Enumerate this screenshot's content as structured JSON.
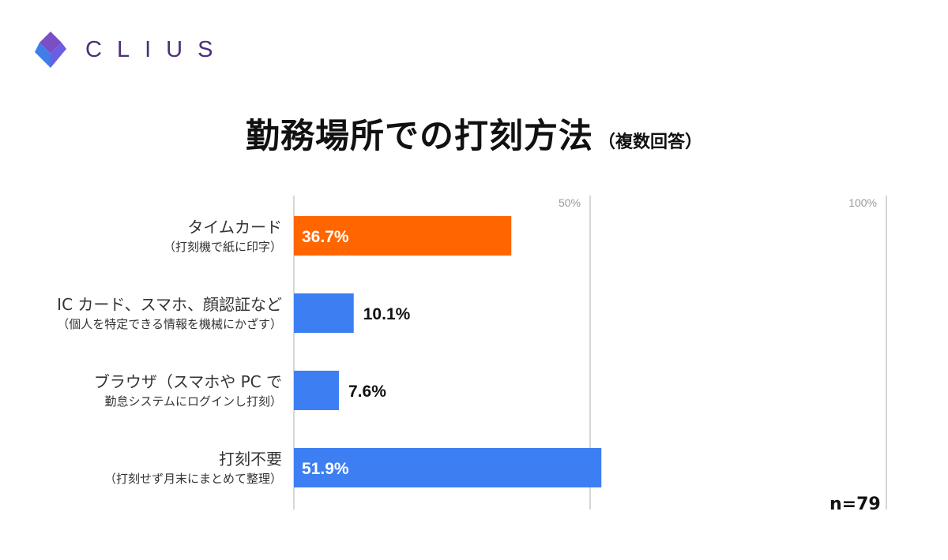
{
  "brand": {
    "name": "CLIUS",
    "logo_icon": "clius-logo-icon",
    "colors": [
      "#7a4fc4",
      "#3f7de9"
    ]
  },
  "title": "勤務場所での打刻方法",
  "subtitle": "（複数回答）",
  "sample": "n=79",
  "chart_data": {
    "type": "bar",
    "orientation": "horizontal",
    "title": "勤務場所での打刻方法",
    "subtitle": "（複数回答）",
    "categories": [
      {
        "main": "タイムカード",
        "sub": "（打刻機で紙に印字）"
      },
      {
        "main": "IC カード、スマホ、顔認証など",
        "sub": "（個人を特定できる情報を機械にかざす）"
      },
      {
        "main": "ブラウザ（スマホや PC で",
        "sub": "勤怠システムにログインし打刻）"
      },
      {
        "main": "打刻不要",
        "sub": "（打刻せず月末にまとめて整理）"
      }
    ],
    "values": [
      36.7,
      10.1,
      7.6,
      51.9
    ],
    "value_labels": [
      "36.7%",
      "10.1%",
      "7.6%",
      "51.9%"
    ],
    "colors": [
      "#ff6600",
      "#3d7ff2",
      "#3d7ff2",
      "#3d7ff2"
    ],
    "xlim": [
      0,
      100
    ],
    "ticks": [
      {
        "value": 50,
        "label": "50%"
      },
      {
        "value": 100,
        "label": "100%"
      }
    ],
    "grid": true,
    "n": "n=79"
  }
}
